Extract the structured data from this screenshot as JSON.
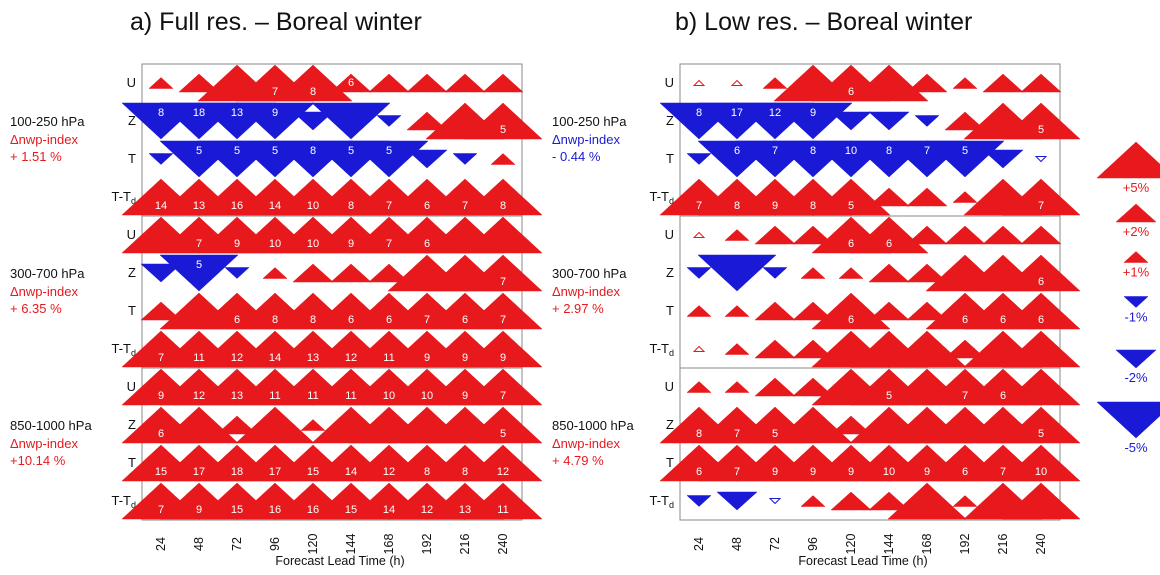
{
  "colors": {
    "positive": "#e8191c",
    "negative": "#1a1ad6"
  },
  "chart_data": [
    {
      "type": "scorecard",
      "title": "a) Full res. – Boreal winter",
      "xlabel": "Forecast Lead Time (h)",
      "x": [
        "24",
        "48",
        "72",
        "96",
        "120",
        "144",
        "168",
        "192",
        "216",
        "240"
      ],
      "variables": [
        "U",
        "Z",
        "T",
        "T-Td"
      ],
      "blocks": [
        {
          "label": "100-250 hPa",
          "index_label": "Δnwp-index",
          "index_value": "+ 1.51 %",
          "index_sign": "positive",
          "rows": [
            {
              "var": "U",
              "pct": [
                1,
                2,
                5,
                5,
                5,
                4,
                3,
                3,
                2,
                2
              ],
              "num": [
                "",
                "",
                "",
                "7",
                "8",
                "6",
                "",
                "",
                "",
                ""
              ]
            },
            {
              "var": "Z",
              "pct": [
                -5,
                -5,
                -5,
                -5,
                -2,
                -5,
                -1,
                2,
                5,
                5
              ],
              "num": [
                "8",
                "18",
                "13",
                "9",
                "",
                "",
                "",
                "",
                "",
                "5"
              ]
            },
            {
              "var": "T",
              "pct": [
                -1,
                -5,
                -5,
                -5,
                -5,
                -5,
                -5,
                -2,
                -1,
                1
              ],
              "num": [
                "",
                "5",
                "5",
                "5",
                "8",
                "5",
                "5",
                "",
                "",
                ""
              ]
            },
            {
              "var": "T-Td",
              "pct": [
                5,
                5,
                5,
                5,
                5,
                5,
                5,
                5,
                5,
                5
              ],
              "num": [
                "14",
                "13",
                "16",
                "14",
                "10",
                "8",
                "7",
                "6",
                "7",
                "8"
              ]
            }
          ]
        },
        {
          "label": "300-700 hPa",
          "index_label": "Δnwp-index",
          "index_value": "+ 6.35 %",
          "index_sign": "positive",
          "rows": [
            {
              "var": "U",
              "pct": [
                5,
                5,
                5,
                5,
                5,
                5,
                5,
                5,
                5,
                5
              ],
              "num": [
                "",
                "7",
                "9",
                "10",
                "10",
                "9",
                "7",
                "6",
                "",
                ""
              ]
            },
            {
              "var": "Z",
              "pct": [
                -2,
                -5,
                -1,
                1,
                2,
                2,
                2,
                5,
                5,
                5
              ],
              "num": [
                "",
                "5",
                "",
                "",
                "",
                "",
                "",
                "",
                "",
                "7"
              ]
            },
            {
              "var": "T",
              "pct": [
                2,
                5,
                5,
                5,
                5,
                5,
                5,
                5,
                5,
                5
              ],
              "num": [
                "",
                "",
                "6",
                "8",
                "8",
                "6",
                "6",
                "7",
                "6",
                "7"
              ]
            },
            {
              "var": "T-Td",
              "pct": [
                5,
                5,
                5,
                5,
                5,
                5,
                5,
                5,
                5,
                5
              ],
              "num": [
                "7",
                "11",
                "12",
                "14",
                "13",
                "12",
                "11",
                "9",
                "9",
                "9"
              ]
            }
          ]
        },
        {
          "label": "850-1000 hPa",
          "index_label": "Δnwp-index",
          "index_value": "+10.14 %",
          "index_sign": "positive",
          "rows": [
            {
              "var": "U",
              "pct": [
                5,
                5,
                5,
                5,
                5,
                5,
                5,
                5,
                5,
                5
              ],
              "num": [
                "9",
                "12",
                "13",
                "11",
                "11",
                "11",
                "10",
                "10",
                "9",
                "7"
              ]
            },
            {
              "var": "Z",
              "pct": [
                5,
                5,
                2,
                5,
                1,
                5,
                5,
                5,
                5,
                5
              ],
              "num": [
                "6",
                "",
                "",
                "",
                "",
                "",
                "",
                "",
                "",
                "5"
              ]
            },
            {
              "var": "T",
              "pct": [
                5,
                5,
                5,
                5,
                5,
                5,
                5,
                5,
                5,
                5
              ],
              "num": [
                "15",
                "17",
                "18",
                "17",
                "15",
                "14",
                "12",
                "8",
                "8",
                "12"
              ]
            },
            {
              "var": "T-Td",
              "pct": [
                5,
                5,
                5,
                5,
                5,
                5,
                5,
                5,
                5,
                5
              ],
              "num": [
                "7",
                "9",
                "15",
                "16",
                "16",
                "15",
                "14",
                "12",
                "13",
                "11"
              ]
            }
          ]
        }
      ]
    },
    {
      "type": "scorecard",
      "title": "b) Low res. – Boreal winter",
      "xlabel": "Forecast Lead Time (h)",
      "x": [
        "24",
        "48",
        "72",
        "96",
        "120",
        "144",
        "168",
        "192",
        "216",
        "240"
      ],
      "variables": [
        "U",
        "Z",
        "T",
        "T-Td"
      ],
      "blocks": [
        {
          "label": "100-250 hPa",
          "index_label": "Δnwp-index",
          "index_value": "- 0.44 %",
          "index_sign": "negative",
          "rows": [
            {
              "var": "U",
              "pct": [
                0.5,
                0.5,
                1,
                5,
                5,
                5,
                2,
                1,
                2,
                2
              ],
              "num": [
                "",
                "",
                "",
                "",
                "6",
                "",
                "",
                "",
                "",
                ""
              ]
            },
            {
              "var": "Z",
              "pct": [
                -5,
                -5,
                -5,
                -5,
                -2,
                -2,
                -1,
                2,
                5,
                5
              ],
              "num": [
                "8",
                "17",
                "12",
                "9",
                "",
                "",
                "",
                "",
                "",
                "5"
              ]
            },
            {
              "var": "T",
              "pct": [
                -1,
                -5,
                -5,
                -5,
                -5,
                -5,
                -5,
                -5,
                -2,
                -0.5
              ],
              "num": [
                "",
                "6",
                "7",
                "8",
                "10",
                "8",
                "7",
                "5",
                "",
                ""
              ]
            },
            {
              "var": "T-Td",
              "pct": [
                5,
                5,
                5,
                5,
                5,
                2,
                2,
                1,
                5,
                5
              ],
              "num": [
                "7",
                "8",
                "9",
                "8",
                "5",
                "",
                "",
                "",
                "",
                "7"
              ]
            }
          ]
        },
        {
          "label": "300-700 hPa",
          "index_label": "Δnwp-index",
          "index_value": "+ 2.97 %",
          "index_sign": "positive",
          "rows": [
            {
              "var": "U",
              "pct": [
                0.5,
                1,
                2,
                2,
                5,
                5,
                2,
                2,
                2,
                2
              ],
              "num": [
                "",
                "",
                "",
                "",
                "6",
                "6",
                "",
                "",
                "",
                ""
              ]
            },
            {
              "var": "Z",
              "pct": [
                -1,
                -5,
                -1,
                1,
                1,
                2,
                2,
                5,
                5,
                5
              ],
              "num": [
                "",
                "",
                "",
                "",
                "",
                "",
                "",
                "",
                "",
                "6"
              ]
            },
            {
              "var": "T",
              "pct": [
                1,
                1,
                2,
                2,
                5,
                2,
                2,
                5,
                5,
                5
              ],
              "num": [
                "",
                "",
                "",
                "",
                "6",
                "",
                "",
                "6",
                "6",
                "6"
              ]
            },
            {
              "var": "T-Td",
              "pct": [
                0.5,
                1,
                2,
                2,
                5,
                5,
                5,
                2,
                5,
                5
              ],
              "num": [
                "",
                "",
                "",
                "",
                "",
                "",
                "",
                "",
                "",
                ""
              ]
            }
          ]
        },
        {
          "label": "850-1000 hPa",
          "index_label": "Δnwp-index",
          "index_value": "+ 4.79 %",
          "index_sign": "positive",
          "rows": [
            {
              "var": "U",
              "pct": [
                1,
                1,
                2,
                2,
                5,
                5,
                5,
                5,
                5,
                5
              ],
              "num": [
                "",
                "",
                "",
                "",
                "",
                "5",
                "",
                "7",
                "6",
                ""
              ]
            },
            {
              "var": "Z",
              "pct": [
                5,
                5,
                5,
                5,
                2,
                5,
                5,
                5,
                5,
                5
              ],
              "num": [
                "8",
                "7",
                "5",
                "",
                "",
                "",
                "",
                "",
                "",
                "5"
              ]
            },
            {
              "var": "T",
              "pct": [
                5,
                5,
                5,
                5,
                5,
                5,
                5,
                5,
                5,
                5
              ],
              "num": [
                "6",
                "7",
                "9",
                "9",
                "9",
                "10",
                "9",
                "6",
                "7",
                "10"
              ]
            },
            {
              "var": "T-Td",
              "pct": [
                -1,
                -2,
                -0.5,
                1,
                2,
                2,
                5,
                1,
                5,
                5
              ],
              "num": [
                "",
                "",
                "",
                "",
                "",
                "",
                "",
                "",
                "",
                ""
              ]
            }
          ]
        }
      ]
    }
  ],
  "legend": [
    {
      "label": "+5%",
      "pct": 5
    },
    {
      "label": "+2%",
      "pct": 2
    },
    {
      "label": "+1%",
      "pct": 1
    },
    {
      "label": "-1%",
      "pct": -1
    },
    {
      "label": "-2%",
      "pct": -2
    },
    {
      "label": "-5%",
      "pct": -5
    }
  ]
}
